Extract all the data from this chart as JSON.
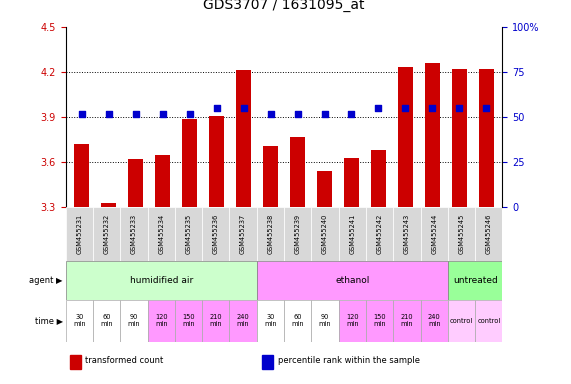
{
  "title": "GDS3707 / 1631095_at",
  "samples": [
    "GSM455231",
    "GSM455232",
    "GSM455233",
    "GSM455234",
    "GSM455235",
    "GSM455236",
    "GSM455237",
    "GSM455238",
    "GSM455239",
    "GSM455240",
    "GSM455241",
    "GSM455242",
    "GSM455243",
    "GSM455244",
    "GSM455245",
    "GSM455246"
  ],
  "bar_values": [
    3.72,
    3.33,
    3.62,
    3.65,
    3.89,
    3.91,
    4.21,
    3.71,
    3.77,
    3.54,
    3.63,
    3.68,
    4.23,
    4.26,
    4.22,
    4.22
  ],
  "dot_values": [
    52,
    52,
    52,
    52,
    52,
    55,
    55,
    52,
    52,
    52,
    52,
    55,
    55,
    55,
    55,
    55
  ],
  "ylim_left": [
    3.3,
    4.5
  ],
  "ylim_right": [
    0,
    100
  ],
  "yticks_left": [
    3.3,
    3.6,
    3.9,
    4.2,
    4.5
  ],
  "yticks_right": [
    0,
    25,
    50,
    75,
    100
  ],
  "hlines": [
    3.6,
    3.9,
    4.2
  ],
  "bar_color": "#cc0000",
  "dot_color": "#0000cc",
  "agent_groups": [
    {
      "label": "humidified air",
      "start": 0,
      "end": 7,
      "color": "#ccffcc"
    },
    {
      "label": "ethanol",
      "start": 7,
      "end": 14,
      "color": "#ff99ff"
    },
    {
      "label": "untreated",
      "start": 14,
      "end": 16,
      "color": "#99ff99"
    }
  ],
  "time_labels": [
    "30\nmin",
    "60\nmin",
    "90\nmin",
    "120\nmin",
    "150\nmin",
    "210\nmin",
    "240\nmin",
    "30\nmin",
    "60\nmin",
    "90\nmin",
    "120\nmin",
    "150\nmin",
    "210\nmin",
    "240\nmin",
    "control",
    "control"
  ],
  "time_colors_bg": [
    "#ffffff",
    "#ffffff",
    "#ffffff",
    "#ff99ff",
    "#ff99ff",
    "#ff99ff",
    "#ff99ff",
    "#ffffff",
    "#ffffff",
    "#ffffff",
    "#ff99ff",
    "#ff99ff",
    "#ff99ff",
    "#ff99ff",
    "#ffccff",
    "#ffccff"
  ],
  "sample_box_color": "#d8d8d8",
  "legend_items": [
    {
      "label": "transformed count",
      "color": "#cc0000",
      "marker": "s"
    },
    {
      "label": "percentile rank within the sample",
      "color": "#0000cc",
      "marker": "s"
    }
  ],
  "title_fontsize": 10,
  "tick_fontsize": 7,
  "bar_width": 0.55
}
